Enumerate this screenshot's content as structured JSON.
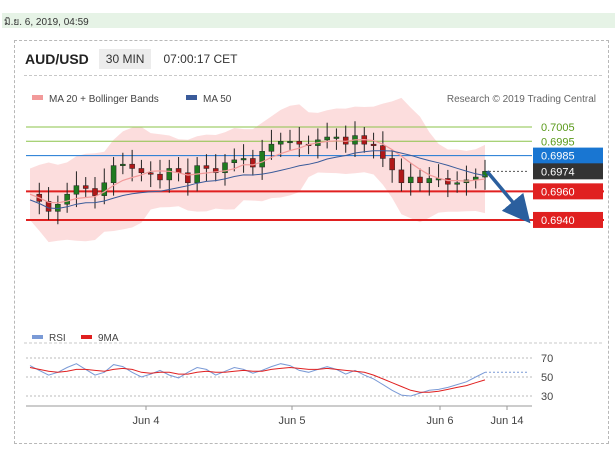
{
  "topbar": {
    "date": "มิ.ย. 6, 2019, 04:59"
  },
  "header": {
    "pair": "AUD/USD",
    "timeframe": "30 MIN",
    "time": "07:00:17 CET"
  },
  "legend": {
    "ma20": "MA 20 + Bollinger Bands",
    "ma50": "MA 50",
    "ma20_color": "#f29a9a",
    "ma50_color": "#3a5b9a",
    "watermark": "Research © 2019 Trading Central"
  },
  "rsi_legend": {
    "rsi": "RSI",
    "ma9": "9MA",
    "rsi_color": "#7a9ad6",
    "ma9_color": "#e02020"
  },
  "chart_data": {
    "type": "candlestick",
    "instrument": "AUD/USD",
    "timeframe": "30 MIN",
    "ylim": [
      0.6932,
      0.7012
    ],
    "x_ticks": [
      "Jun 4",
      "Jun 5",
      "Jun 6",
      "Jun 14"
    ],
    "levels": [
      {
        "value": 0.7005,
        "label": "0.7005",
        "kind": "resistance",
        "color": "#8bc34a"
      },
      {
        "value": 0.6995,
        "label": "0.6995",
        "kind": "resistance",
        "color": "#8bc34a"
      },
      {
        "value": 0.6985,
        "label": "0.6985",
        "kind": "pivot",
        "color": "#1976d2"
      },
      {
        "value": 0.6974,
        "label": "0.6974",
        "kind": "last_price",
        "color": "#333333"
      },
      {
        "value": 0.696,
        "label": "0.6960",
        "kind": "target",
        "color": "#e02020"
      },
      {
        "value": 0.694,
        "label": "0.6940",
        "kind": "target",
        "color": "#e02020"
      }
    ],
    "forecast": {
      "from": 0.6974,
      "to": 0.694,
      "direction": "down"
    },
    "close_path": [
      0.6958,
      0.6953,
      0.6946,
      0.6951,
      0.6958,
      0.6964,
      0.6962,
      0.6957,
      0.6966,
      0.6978,
      0.6979,
      0.6976,
      0.6973,
      0.6972,
      0.6968,
      0.6976,
      0.6973,
      0.6966,
      0.6978,
      0.6976,
      0.6973,
      0.698,
      0.6982,
      0.6983,
      0.6977,
      0.6988,
      0.6993,
      0.6995,
      0.6995,
      0.6993,
      0.6992,
      0.6996,
      0.6998,
      0.6998,
      0.6993,
      0.6999,
      0.6993,
      0.6992,
      0.6983,
      0.6975,
      0.6966,
      0.697,
      0.6966,
      0.6969,
      0.6969,
      0.6965,
      0.6966,
      0.6968,
      0.697,
      0.6974
    ],
    "rsi": {
      "ticks": [
        70,
        50,
        30
      ],
      "ylim": [
        25,
        78
      ],
      "rsi": [
        62,
        57,
        52,
        55,
        60,
        64,
        58,
        52,
        55,
        63,
        61,
        55,
        50,
        53,
        57,
        52,
        49,
        55,
        60,
        58,
        52,
        56,
        60,
        58,
        54,
        57,
        61,
        64,
        62,
        57,
        55,
        58,
        61,
        58,
        53,
        57,
        52,
        48,
        42,
        36,
        31,
        30,
        33,
        36,
        37,
        39,
        42,
        45,
        50,
        55
      ],
      "ma9": [
        60,
        58,
        56,
        55,
        56,
        58,
        58,
        57,
        56,
        58,
        59,
        58,
        55,
        54,
        55,
        55,
        53,
        53,
        55,
        56,
        55,
        55,
        56,
        57,
        56,
        56,
        58,
        59,
        60,
        59,
        58,
        58,
        59,
        58,
        57,
        56,
        55,
        52,
        48,
        44,
        40,
        36,
        34,
        34,
        35,
        37,
        39,
        41,
        44,
        47
      ]
    }
  }
}
